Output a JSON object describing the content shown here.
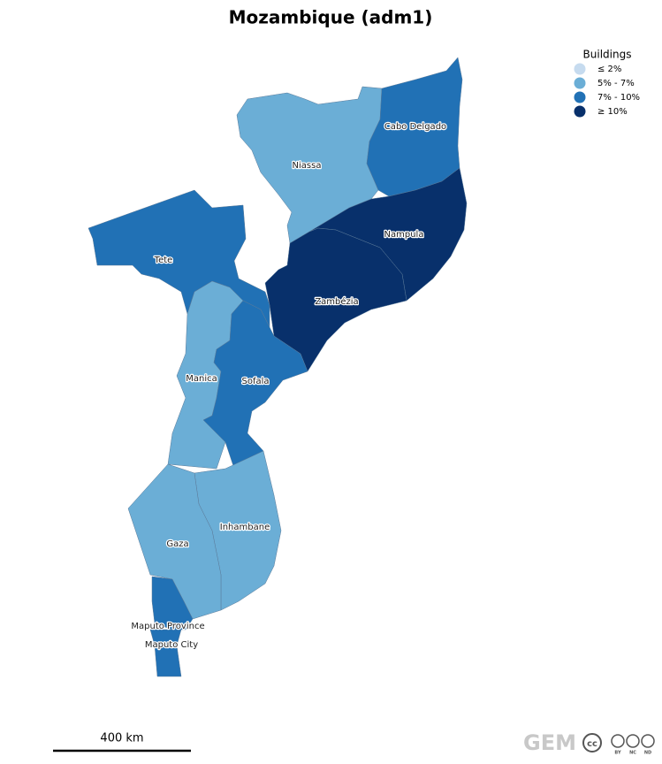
{
  "title": "Mozambique (adm1)",
  "legend": {
    "title": "Buildings",
    "items": [
      {
        "label": "≤ 2%",
        "color": "#c6dbef"
      },
      {
        "label": "5% - 7%",
        "color": "#6baed6"
      },
      {
        "label": "7% - 10%",
        "color": "#2171b5"
      },
      {
        "label": "≥ 10%",
        "color": "#08306b"
      }
    ]
  },
  "regions": [
    {
      "name": "Niassa",
      "bin": 1
    },
    {
      "name": "Cabo Delgado",
      "bin": 2
    },
    {
      "name": "Nampula",
      "bin": 3
    },
    {
      "name": "Zambézia",
      "bin": 3
    },
    {
      "name": "Tete",
      "bin": 2
    },
    {
      "name": "Manica",
      "bin": 1
    },
    {
      "name": "Sofala",
      "bin": 2
    },
    {
      "name": "Inhambane",
      "bin": 1
    },
    {
      "name": "Gaza",
      "bin": 1
    },
    {
      "name": "Maputo Province",
      "bin": 2
    },
    {
      "name": "Maputo City",
      "bin": 2
    }
  ],
  "scale_bar": "400 km",
  "logo": {
    "name": "GEM",
    "badges": [
      "BY",
      "NC",
      "ND"
    ]
  }
}
